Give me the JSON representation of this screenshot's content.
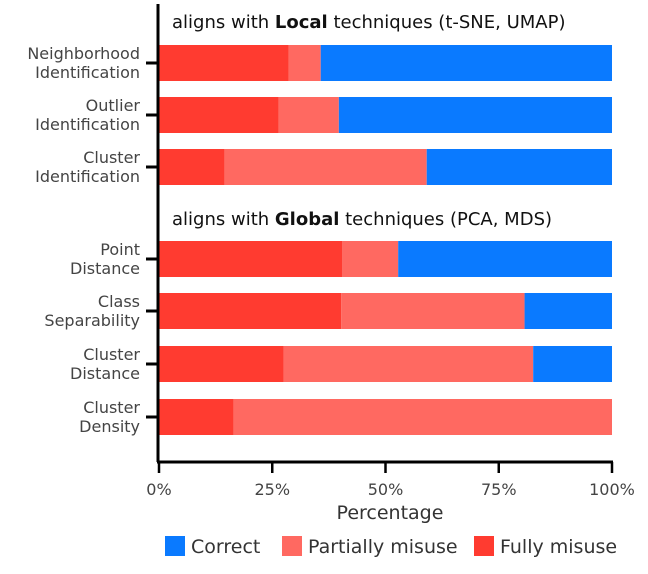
{
  "chart_data": {
    "type": "bar",
    "orientation": "horizontal",
    "stacked": true,
    "xlabel": "Percentage",
    "xticks": [
      "0%",
      "25%",
      "50%",
      "75%",
      "100%"
    ],
    "xlim": [
      0,
      100
    ],
    "groups": [
      {
        "prefix": "aligns with ",
        "bold": "Local",
        "suffix": " techniques (t-SNE, UMAP)"
      },
      {
        "prefix": "aligns with ",
        "bold": "Global",
        "suffix": " techniques (PCA, MDS)"
      }
    ],
    "categories": [
      [
        "Neighborhood",
        "Identification"
      ],
      [
        "Outlier",
        "Identification"
      ],
      [
        "Cluster",
        "Identification"
      ],
      [
        "Point",
        "Distance"
      ],
      [
        "Class",
        "Separability"
      ],
      [
        "Cluster",
        "Distance"
      ],
      [
        "Cluster",
        "Density"
      ]
    ],
    "category_group": [
      0,
      0,
      0,
      1,
      1,
      1,
      1
    ],
    "series": [
      {
        "name": "Fully misuse",
        "color": "#ff3b30",
        "values": [
          28.6,
          26.4,
          14.5,
          40.4,
          40.2,
          27.5,
          16.5
        ]
      },
      {
        "name": "Partially misuse",
        "color": "#ff6961",
        "values": [
          7.1,
          13.3,
          44.6,
          12.4,
          40.5,
          55.1,
          83.5
        ]
      },
      {
        "name": "Correct",
        "color": "#0a7aff",
        "values": [
          64.3,
          60.3,
          40.9,
          47.2,
          19.3,
          17.4,
          0
        ]
      }
    ],
    "legend": {
      "position": "bottom",
      "order": [
        "Correct",
        "Partially misuse",
        "Fully misuse"
      ]
    },
    "grid": false
  }
}
